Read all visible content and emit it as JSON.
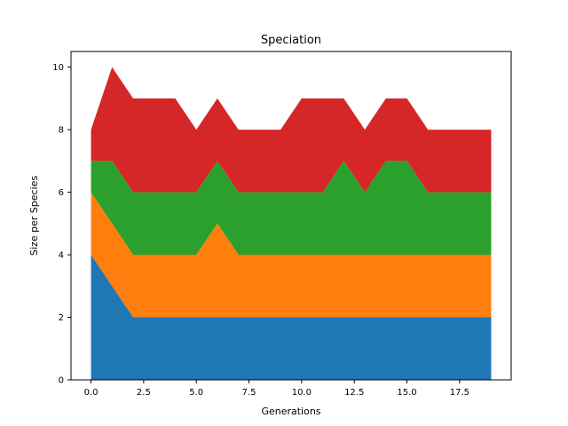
{
  "chart_data": {
    "type": "area",
    "stacked": true,
    "title": "Speciation",
    "xlabel": "Generations",
    "ylabel": "Size per Species",
    "xlim": [
      -0.95,
      19.95
    ],
    "ylim": [
      0,
      10.5
    ],
    "x_ticks": [
      0.0,
      2.5,
      5.0,
      7.5,
      10.0,
      12.5,
      15.0,
      17.5
    ],
    "x_tick_labels": [
      "0.0",
      "2.5",
      "5.0",
      "7.5",
      "10.0",
      "12.5",
      "15.0",
      "17.5"
    ],
    "y_ticks": [
      0,
      2,
      4,
      6,
      8,
      10
    ],
    "y_tick_labels": [
      "0",
      "2",
      "4",
      "6",
      "8",
      "10"
    ],
    "grid": false,
    "x": [
      0,
      1,
      2,
      3,
      4,
      5,
      6,
      7,
      8,
      9,
      10,
      11,
      12,
      13,
      14,
      15,
      16,
      17,
      18,
      19
    ],
    "series": [
      {
        "color": "#1f77b4",
        "values": [
          4,
          3,
          2,
          2,
          2,
          2,
          2,
          2,
          2,
          2,
          2,
          2,
          2,
          2,
          2,
          2,
          2,
          2,
          2,
          2
        ]
      },
      {
        "color": "#ff7f0e",
        "values": [
          2,
          2,
          2,
          2,
          2,
          2,
          3,
          2,
          2,
          2,
          2,
          2,
          2,
          2,
          2,
          2,
          2,
          2,
          2,
          2
        ]
      },
      {
        "color": "#2ca02c",
        "values": [
          1,
          2,
          2,
          2,
          2,
          2,
          2,
          2,
          2,
          2,
          2,
          2,
          3,
          2,
          3,
          3,
          2,
          2,
          2,
          2
        ]
      },
      {
        "color": "#d62728",
        "values": [
          1,
          3,
          3,
          3,
          3,
          2,
          2,
          2,
          2,
          2,
          3,
          3,
          2,
          2,
          2,
          2,
          2,
          2,
          2,
          2
        ]
      }
    ]
  }
}
